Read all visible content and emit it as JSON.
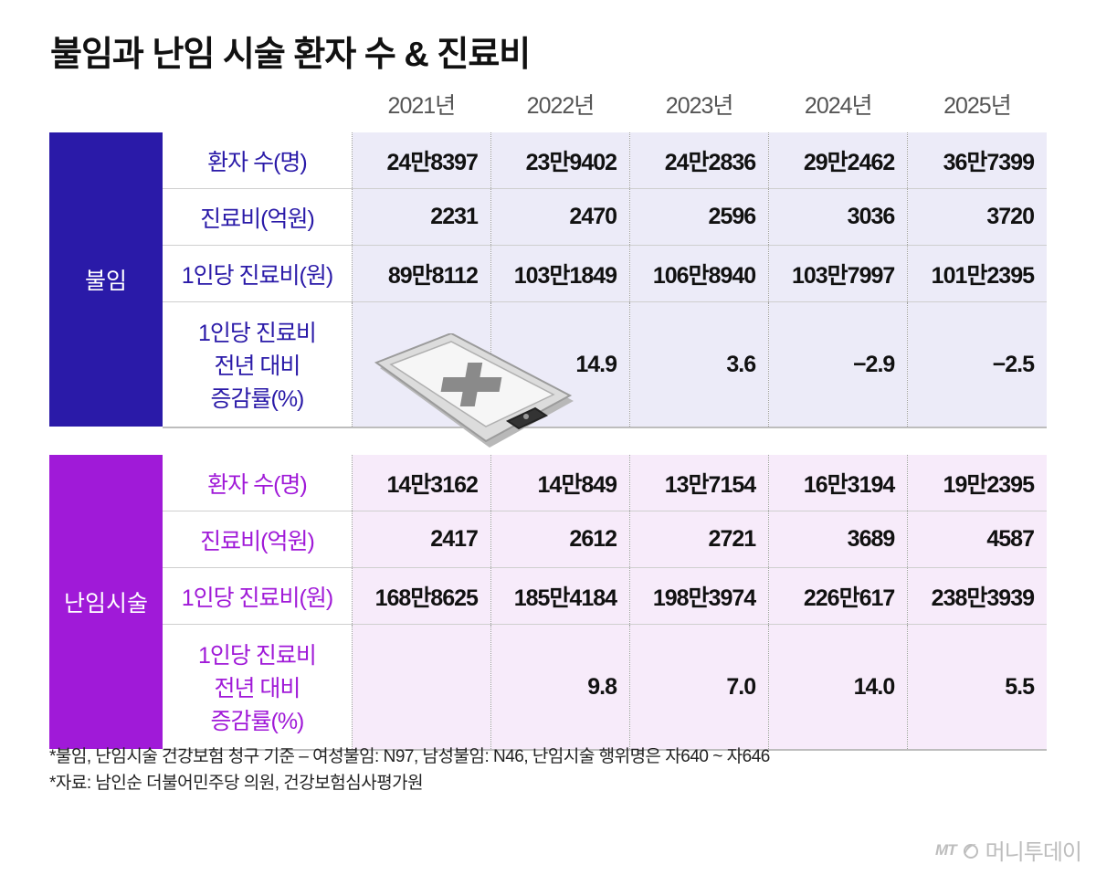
{
  "title": "불임과 난임 시술 환자 수 & 진료비",
  "chart_data": {
    "type": "table",
    "title": "불임과 난임 시술 환자 수 & 진료비",
    "columns": [
      "2021년",
      "2022년",
      "2023년",
      "2024년",
      "2025년"
    ],
    "groups": [
      {
        "name": "불임",
        "rows": [
          {
            "label": "환자 수(명)",
            "values": [
              "24만8397",
              "23만9402",
              "24만2836",
              "29만2462",
              "36만7399"
            ]
          },
          {
            "label": "진료비(억원)",
            "values": [
              "2231",
              "2470",
              "2596",
              "3036",
              "3720"
            ]
          },
          {
            "label": "1인당 진료비(원)",
            "values": [
              "89만8112",
              "103만1849",
              "106만8940",
              "103만7997",
              "101만2395"
            ]
          },
          {
            "label": "1인당 진료비\n전년 대비\n증감률(%)",
            "values": [
              "",
              "14.9",
              "3.6",
              "−2.9",
              "−2.5"
            ]
          }
        ]
      },
      {
        "name": "난임시술",
        "rows": [
          {
            "label": "환자 수(명)",
            "values": [
              "14만3162",
              "14만849",
              "13만7154",
              "16만3194",
              "19만2395"
            ]
          },
          {
            "label": "진료비(억원)",
            "values": [
              "2417",
              "2612",
              "2721",
              "3689",
              "4587"
            ]
          },
          {
            "label": "1인당 진료비(원)",
            "values": [
              "168만8625",
              "185만4184",
              "198만3974",
              "226만617",
              "238만3939"
            ]
          },
          {
            "label": "1인당 진료비\n전년 대비\n증감률(%)",
            "values": [
              "",
              "9.8",
              "7.0",
              "14.0",
              "5.5"
            ]
          }
        ]
      }
    ]
  },
  "colors": {
    "infertility": "#2a1aa8",
    "infertility_bg": "#ecebf8",
    "ivf": "#a01ad8",
    "ivf_bg": "#f7ebfa"
  },
  "illustration": {
    "icon": "medical-clipboard-icon"
  },
  "footnotes": [
    "*불임, 난임시술 건강보험 청구 기준 – 여성불임: N97, 남성불임: N46, 난임시술 행위명은 자640 ~ 자646",
    "*자료: 남인순 더불어민주당 의원, 건강보험심사평가원"
  ],
  "logo": {
    "prefix": "MT",
    "name": "머니투데이"
  }
}
